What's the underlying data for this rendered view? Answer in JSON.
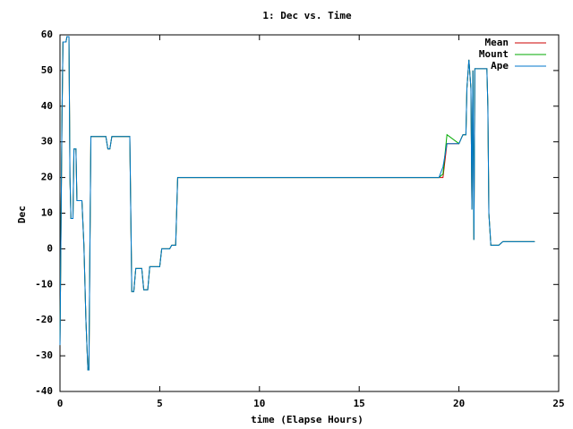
{
  "chart_data": {
    "type": "line",
    "title": "1: Dec vs. Time",
    "x_label": "time (Elapse Hours)",
    "y_label": "Dec",
    "x": [
      0,
      0.1,
      0.15,
      0.3,
      0.35,
      0.45,
      0.5,
      0.55,
      0.65,
      0.7,
      0.8,
      0.85,
      1.1,
      1.2,
      1.3,
      1.4,
      1.45,
      1.5,
      1.55,
      2.3,
      2.4,
      2.5,
      2.6,
      3.5,
      3.6,
      3.7,
      3.8,
      4.1,
      4.2,
      4.4,
      4.5,
      5.0,
      5.1,
      5.5,
      5.6,
      5.8,
      5.9,
      19.0,
      19.2,
      19.4,
      20.0,
      20.2,
      20.35,
      20.4,
      20.5,
      20.6,
      20.65,
      20.7,
      20.75,
      20.8,
      21.4,
      21.45,
      21.5,
      21.6,
      22.0,
      22.2,
      23.8
    ],
    "series": [
      {
        "name": "Mean",
        "color": "#cc0000",
        "values": [
          -27,
          37,
          58,
          58,
          59.5,
          59.5,
          20,
          8.5,
          8.5,
          28,
          28,
          13.5,
          13.5,
          1,
          -20,
          -34,
          -34,
          0,
          31.5,
          31.5,
          28,
          28,
          31.5,
          31.5,
          -12,
          -12,
          -5.5,
          -5.5,
          -11.5,
          -11.5,
          -5,
          -5,
          0,
          0,
          1,
          1,
          20,
          20,
          20,
          29.5,
          29.5,
          32,
          32,
          45,
          53,
          45,
          11,
          50,
          2.5,
          50.5,
          50.5,
          40,
          10,
          1,
          1,
          2,
          2
        ]
      },
      {
        "name": "Mount",
        "color": "#00aa00",
        "values": [
          -27,
          37,
          58,
          58,
          59.5,
          59.5,
          20,
          8.5,
          8.5,
          28,
          28,
          13.5,
          13.5,
          1,
          -20,
          -34,
          -34,
          0,
          31.5,
          31.5,
          28,
          28,
          31.5,
          31.5,
          -12,
          -12,
          -5.5,
          -5.5,
          -11.5,
          -11.5,
          -5,
          -5,
          0,
          0,
          1,
          1,
          20,
          20,
          21,
          32,
          29.5,
          32,
          32,
          45,
          53,
          45,
          11,
          50,
          2.5,
          50.5,
          50.5,
          40,
          10,
          1,
          1,
          2,
          2
        ]
      },
      {
        "name": "Ape",
        "color": "#0077cc",
        "values": [
          -27,
          37,
          58,
          58,
          59.5,
          59.5,
          20,
          8.5,
          8.5,
          28,
          28,
          13.5,
          13.5,
          1,
          -20,
          -34,
          -34,
          0,
          31.5,
          31.5,
          28,
          28,
          31.5,
          31.5,
          -12,
          -12,
          -5.5,
          -5.5,
          -11.5,
          -11.5,
          -5,
          -5,
          0,
          0,
          1,
          1,
          20,
          20,
          23,
          29.5,
          29.5,
          32,
          32,
          45,
          53,
          45,
          11,
          50,
          2.5,
          50.5,
          50.5,
          40,
          10,
          1,
          1,
          2,
          2
        ]
      }
    ],
    "xlim": [
      0,
      25
    ],
    "xticks": [
      0,
      5,
      10,
      15,
      20,
      25
    ],
    "ylim": [
      -40,
      60
    ],
    "yticks": [
      -40,
      -30,
      -20,
      -10,
      0,
      10,
      20,
      30,
      40,
      50,
      60
    ],
    "legend": "top-right"
  }
}
